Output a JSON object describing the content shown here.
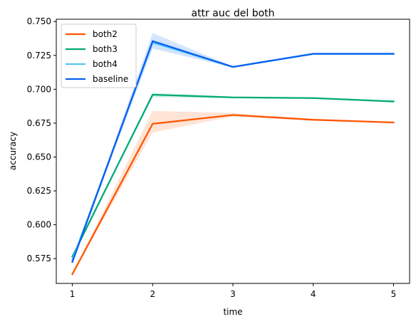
{
  "chart_data": {
    "type": "line",
    "title": "attr auc del both",
    "xlabel": "time",
    "ylabel": "accuracy",
    "x": [
      1,
      2,
      3,
      4,
      5
    ],
    "xticks": [
      "1",
      "2",
      "3",
      "4",
      "5"
    ],
    "yticks": [
      "0.575",
      "0.600",
      "0.625",
      "0.650",
      "0.675",
      "0.700",
      "0.725",
      "0.750"
    ],
    "xlim": [
      0.8,
      5.2
    ],
    "ylim": [
      0.5567,
      0.7517
    ],
    "grid": false,
    "legend_position": "top-left",
    "series": [
      {
        "name": "both2",
        "color": "#ff5500",
        "band_color": "#ffd8c4",
        "values": [
          0.5635,
          0.6745,
          0.681,
          0.6775,
          0.6755
        ],
        "band_lower": [
          0.5635,
          0.668,
          0.68,
          0.677,
          0.675
        ],
        "band_upper": [
          0.5635,
          0.684,
          0.6825,
          0.678,
          0.676
        ]
      },
      {
        "name": "both3",
        "color": "#00aa77",
        "band_color": "#c4ecdf",
        "values": [
          0.5765,
          0.696,
          0.694,
          0.6935,
          0.691
        ],
        "band_lower": [
          0.5765,
          0.694,
          0.6935,
          0.693,
          0.6905
        ],
        "band_upper": [
          0.5765,
          0.6975,
          0.6945,
          0.694,
          0.6915
        ]
      },
      {
        "name": "both4",
        "color": "#55c4f5",
        "band_color": "#cdeefc",
        "values": [
          0.574,
          0.7345,
          0.7165,
          0.726,
          0.726
        ],
        "band_lower": [
          0.574,
          0.731,
          0.716,
          0.7255,
          0.7255
        ],
        "band_upper": [
          0.574,
          0.738,
          0.717,
          0.7265,
          0.7265
        ]
      },
      {
        "name": "baseline",
        "color": "#0a5ff0",
        "band_color": "#c6dcfd",
        "values": [
          0.5725,
          0.7355,
          0.7165,
          0.7262,
          0.7262
        ],
        "band_lower": [
          0.5725,
          0.73,
          0.716,
          0.7257,
          0.7257
        ],
        "band_upper": [
          0.5725,
          0.7415,
          0.717,
          0.7267,
          0.7267
        ]
      }
    ]
  }
}
